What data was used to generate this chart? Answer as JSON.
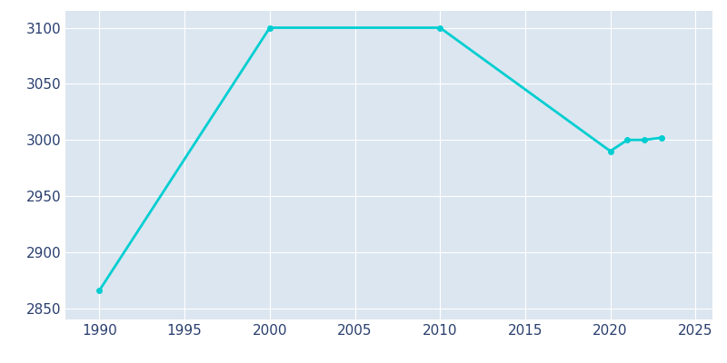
{
  "years": [
    1990,
    2000,
    2010,
    2020,
    2021,
    2022,
    2023
  ],
  "population": [
    2866,
    3100,
    3100,
    2990,
    3000,
    3000,
    3002
  ],
  "line_color": "#00CED1",
  "bg_color": "#FFFFFF",
  "plot_bg_color": "#DCE6F0",
  "grid_color": "#FFFFFF",
  "tick_color": "#2A3F6F",
  "xlim": [
    1988,
    2026
  ],
  "ylim": [
    2840,
    3115
  ],
  "xticks": [
    1990,
    1995,
    2000,
    2005,
    2010,
    2015,
    2020,
    2025
  ],
  "yticks": [
    2850,
    2900,
    2950,
    3000,
    3050,
    3100
  ],
  "line_width": 2.0,
  "marker": "o",
  "marker_size": 4
}
